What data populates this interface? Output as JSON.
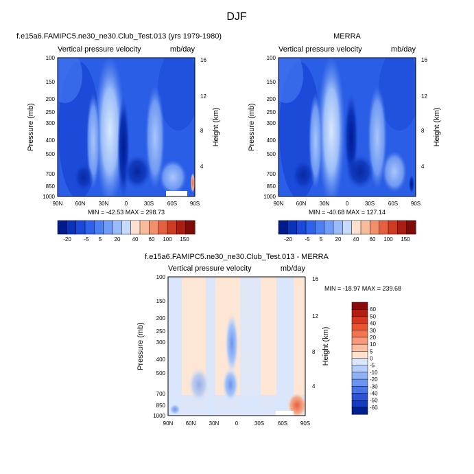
{
  "figure": {
    "season": "DJF"
  },
  "chart_data": [
    {
      "type": "heatmap",
      "panel": "model",
      "header_left": "f.e15a6.FAMIPC5.ne30_ne30.Club_Test.013 (yrs 1979-1980)",
      "header_center": "",
      "subtitle_left": "Vertical pressure velocity",
      "subtitle_right": "mb/day",
      "ylabel": "Pressure (mb)",
      "y2label": "Height (km)",
      "x_ticks": [
        "90N",
        "60N",
        "30N",
        "0",
        "30S",
        "60S",
        "90S"
      ],
      "y_ticks": [
        "100",
        "150",
        "200",
        "250",
        "300",
        "400",
        "500",
        "700",
        "850",
        "1000"
      ],
      "y2_ticks": [
        "16",
        "12",
        "8",
        "4"
      ],
      "stats": "MIN = -42.53  MAX = 298.73",
      "colorbar_labels": [
        "-20",
        "-5",
        "5",
        "20",
        "40",
        "60",
        "100",
        "150"
      ],
      "colorbar_colors": [
        "#001a8c",
        "#0a33b8",
        "#1a48d8",
        "#2e62ea",
        "#4b7ff2",
        "#6f9cf6",
        "#9abbfa",
        "#c6dafc",
        "#fde0cd",
        "#f8bb9b",
        "#f1906a",
        "#e5603e",
        "#cf3a23",
        "#aa1d12",
        "#7e0b08"
      ]
    },
    {
      "type": "heatmap",
      "panel": "obs",
      "header_left": "",
      "header_center": "MERRA",
      "subtitle_left": "Vertical pressure velocity",
      "subtitle_right": "mb/day",
      "ylabel": "Pressure (mb)",
      "y2label": "Height (km)",
      "x_ticks": [
        "90N",
        "60N",
        "30N",
        "0",
        "30S",
        "60S",
        "90S"
      ],
      "y_ticks": [
        "100",
        "150",
        "200",
        "250",
        "300",
        "400",
        "500",
        "700",
        "850",
        "1000"
      ],
      "y2_ticks": [
        "16",
        "12",
        "8",
        "4"
      ],
      "stats": "MIN = -40.68  MAX = 127.14",
      "colorbar_labels": [
        "-20",
        "-5",
        "5",
        "20",
        "40",
        "60",
        "100",
        "150"
      ],
      "colorbar_colors": [
        "#001a8c",
        "#0a33b8",
        "#1a48d8",
        "#2e62ea",
        "#4b7ff2",
        "#6f9cf6",
        "#9abbfa",
        "#c6dafc",
        "#fde0cd",
        "#f8bb9b",
        "#f1906a",
        "#e5603e",
        "#cf3a23",
        "#aa1d12",
        "#7e0b08"
      ]
    },
    {
      "type": "heatmap",
      "panel": "diff",
      "header_left": "",
      "header_center": "f.e15a6.FAMIPC5.ne30_ne30.Club_Test.013 - MERRA",
      "subtitle_left": "Vertical pressure velocity",
      "subtitle_right": "mb/day",
      "ylabel": "Pressure (mb)",
      "y2label": "Height (km)",
      "x_ticks": [
        "90N",
        "60N",
        "30N",
        "0",
        "30S",
        "60S",
        "90S"
      ],
      "y_ticks": [
        "100",
        "150",
        "200",
        "250",
        "300",
        "400",
        "500",
        "700",
        "850",
        "1000"
      ],
      "y2_ticks": [
        "16",
        "12",
        "8",
        "4"
      ],
      "stats": "MIN = -18.97  MAX = 239.68",
      "colorbar_labels": [
        "60",
        "50",
        "40",
        "30",
        "20",
        "10",
        "5",
        "0",
        "-5",
        "-10",
        "-20",
        "-30",
        "-40",
        "-50",
        "-60"
      ],
      "colorbar_colors": [
        "#8c0a08",
        "#b31d10",
        "#d8361c",
        "#ea5530",
        "#f27550",
        "#f7997a",
        "#fbbd9f",
        "#fde1cb",
        "#dae6fc",
        "#b5cdfa",
        "#8fb1f6",
        "#6b94f0",
        "#4874e6",
        "#2c54d6",
        "#153bc0",
        "#00208f"
      ]
    }
  ]
}
